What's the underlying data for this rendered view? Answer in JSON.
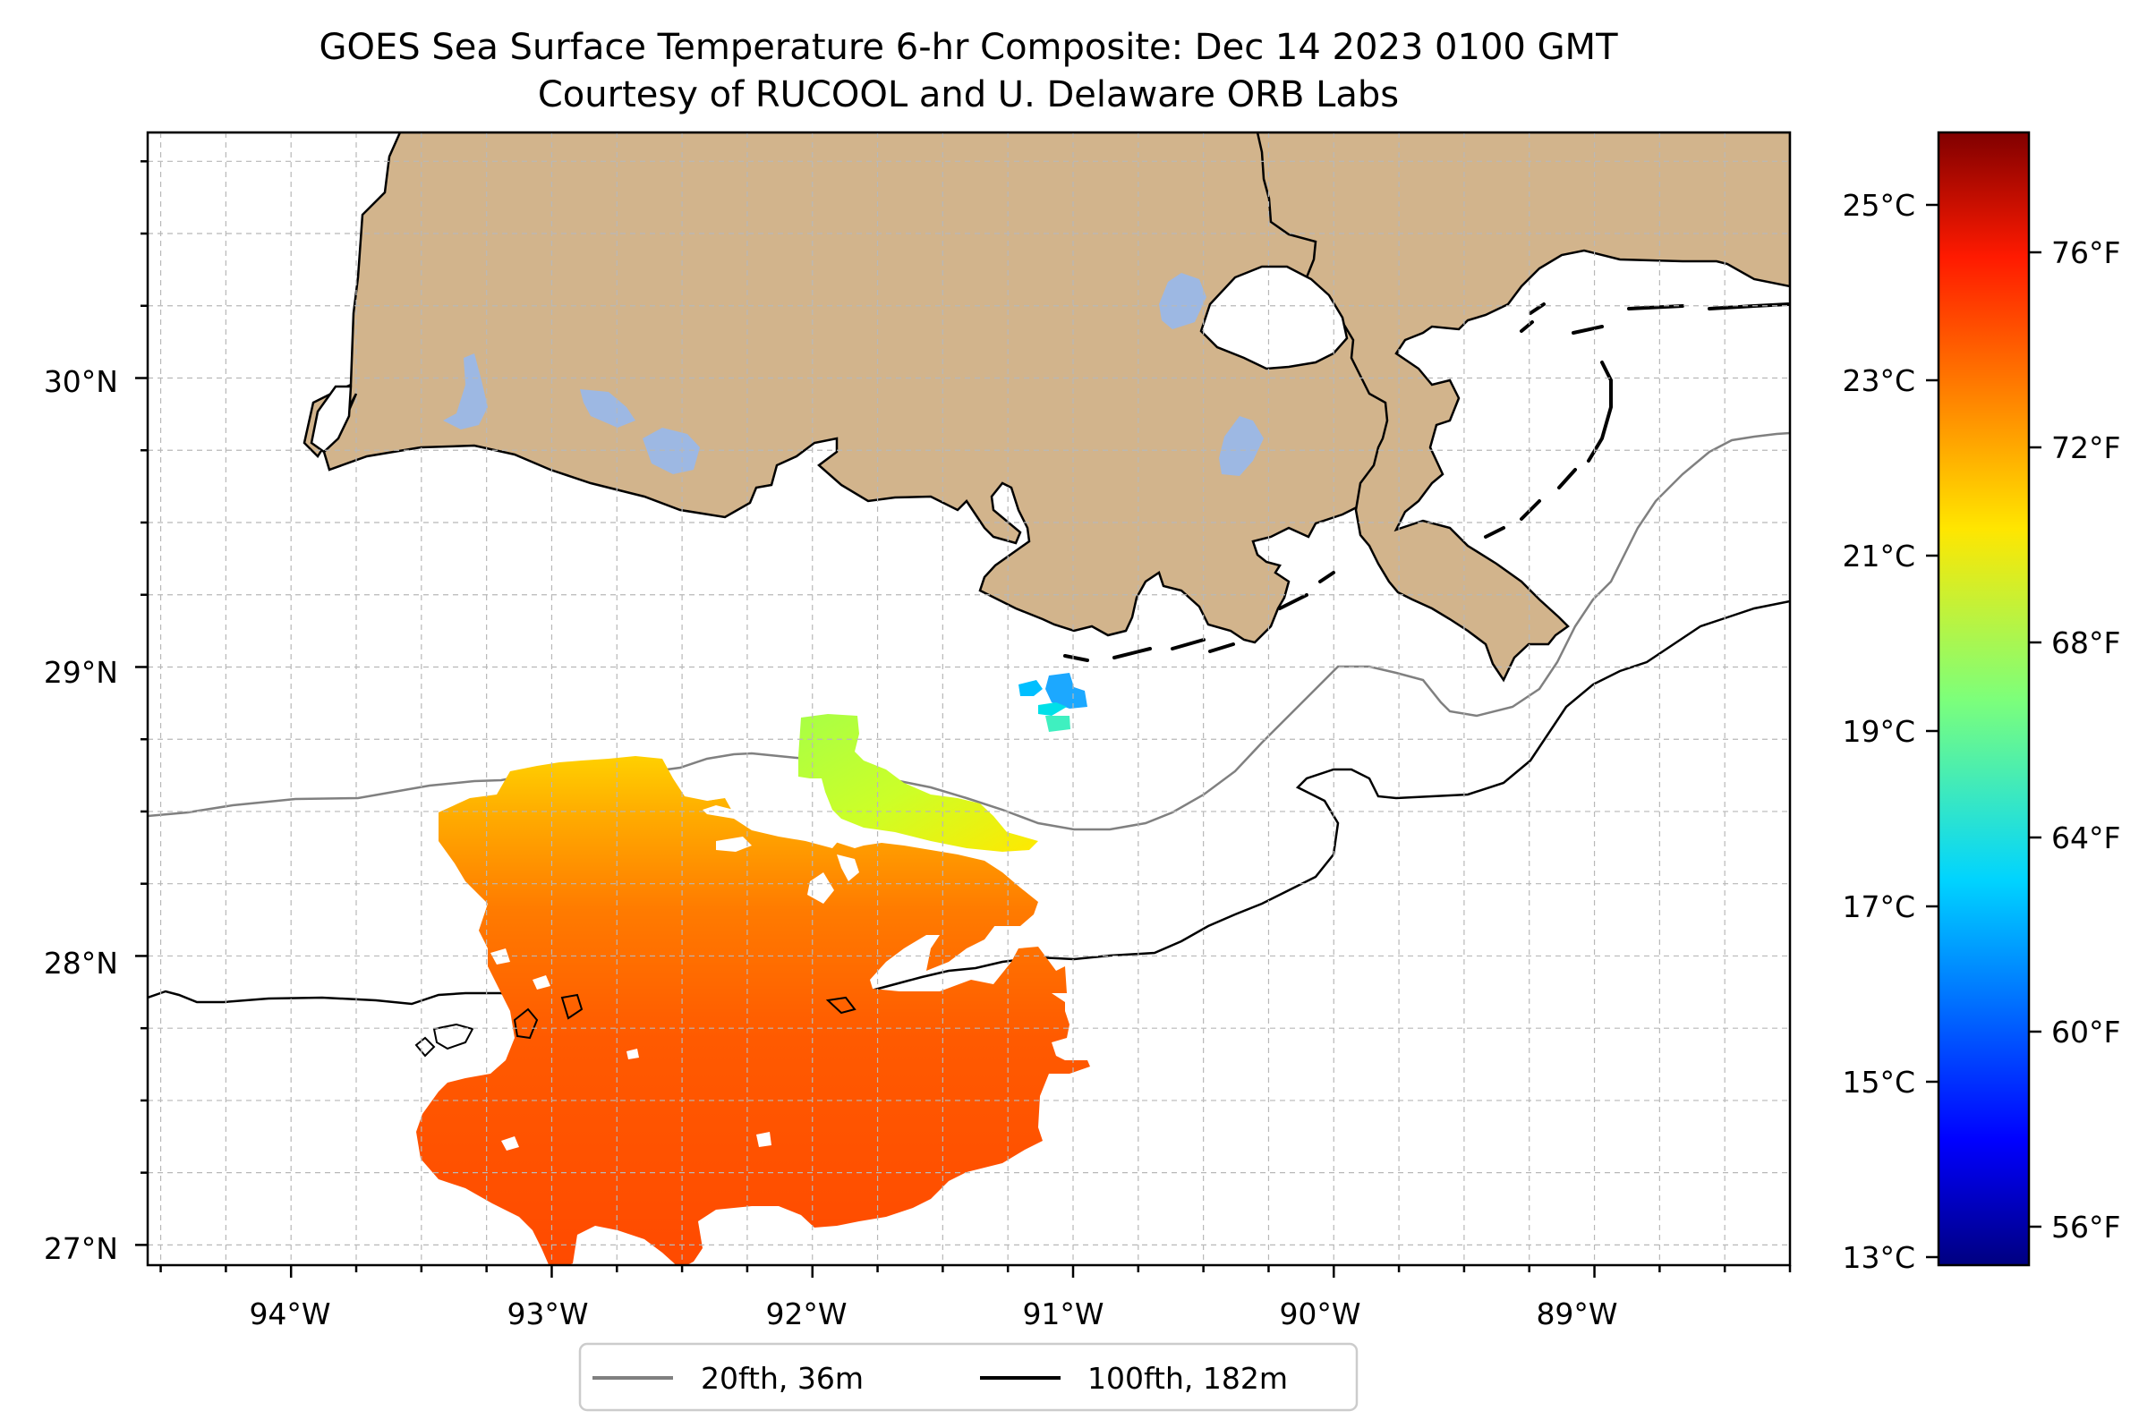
{
  "title": {
    "line1": "GOES Sea Surface Temperature 6-hr Composite: Dec 14 2023 0100 GMT",
    "line2": "Courtesy of RUCOOL and U. Delaware ORB Labs"
  },
  "map": {
    "lon_range": [
      -94.55,
      -88.25
    ],
    "lat_range": [
      26.93,
      30.85
    ],
    "x_ticks": [
      "94°W",
      "93°W",
      "92°W",
      "91°W",
      "90°W",
      "89°W"
    ],
    "y_ticks": [
      "27°N",
      "28°N",
      "29°N",
      "30°N"
    ],
    "grid": true,
    "land_color": "#d2b48c",
    "water_body_color": "#9db8e3",
    "ocean_color": "#ffffff"
  },
  "sst": {
    "units": "°C",
    "range": [
      13,
      26.2
    ],
    "patches": [
      {
        "region": "main-southwest",
        "temp_range_c": [
          22.3,
          24.8
        ]
      },
      {
        "region": "north-of-92W",
        "temp_range_c": [
          19.5,
          20.8
        ]
      },
      {
        "region": "near-91W",
        "temp_range_c": [
          17.5,
          18.4
        ]
      }
    ]
  },
  "colorbar": {
    "celsius_ticks": [
      "25°C",
      "23°C",
      "21°C",
      "19°C",
      "17°C",
      "15°C",
      "13°C"
    ],
    "fahrenheit_ticks": [
      "76°F",
      "72°F",
      "68°F",
      "64°F",
      "60°F",
      "56°F"
    ],
    "colormap": "jet"
  },
  "legend": {
    "position": "bottom-center",
    "entries": [
      {
        "label": "20fth, 36m",
        "color": "#808080"
      },
      {
        "label": "100fth, 182m",
        "color": "#000000"
      }
    ]
  }
}
